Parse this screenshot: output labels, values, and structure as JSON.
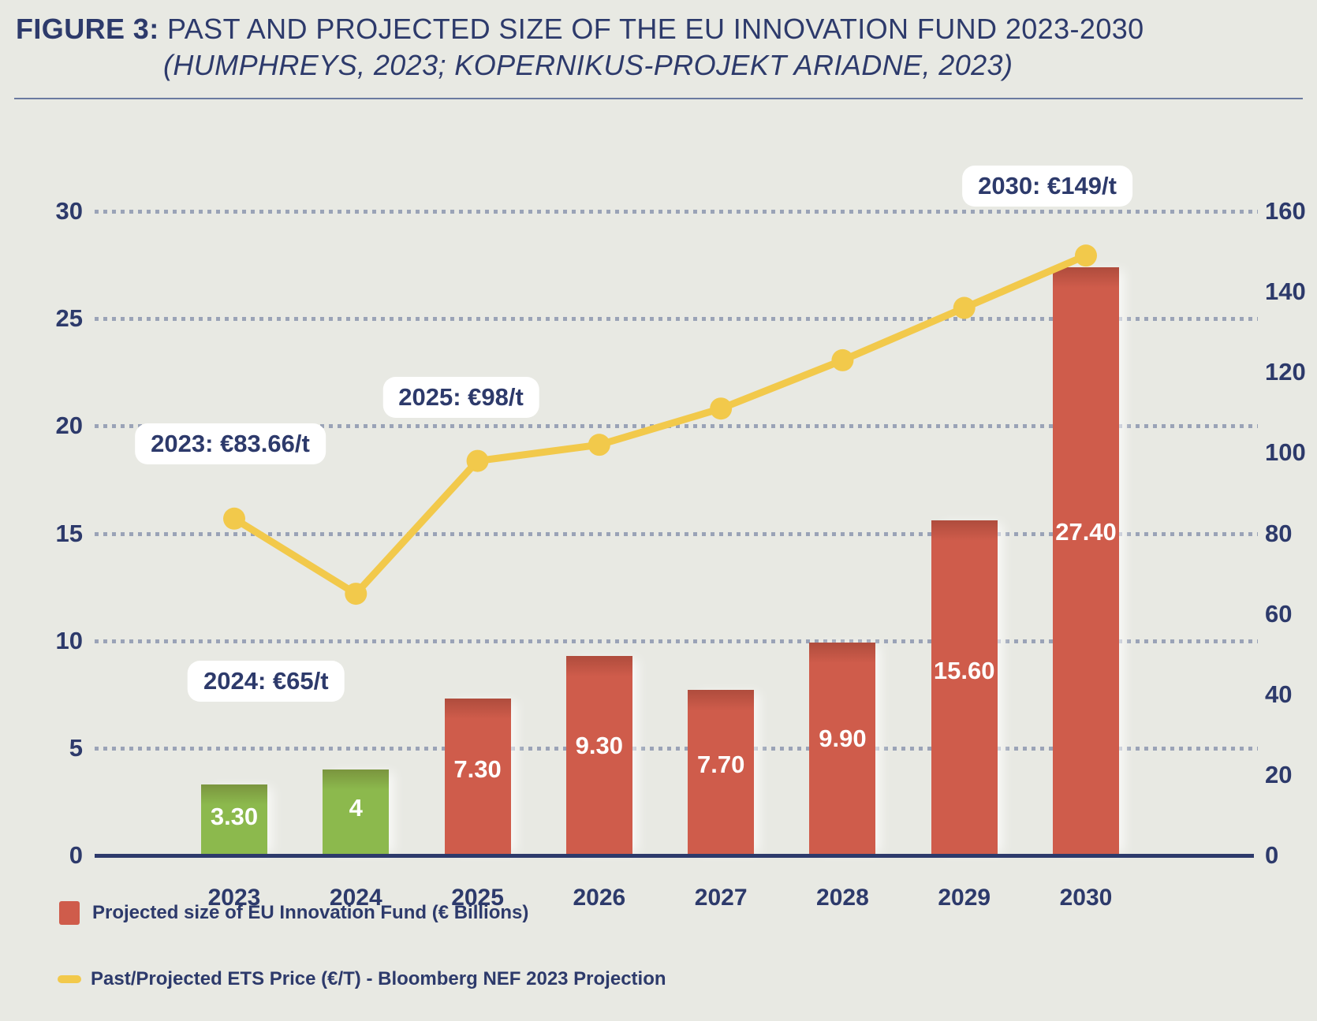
{
  "header": {
    "figure_label": "FIGURE 3:",
    "title_rest": "PAST AND PROJECTED SIZE OF THE EU INNOVATION FUND 2023-2030",
    "subtitle": "(HUMPHREYS, 2023; KOPERNIKUS-PROJEKT ARIADNE, 2023)"
  },
  "legend": {
    "bars_label": "Projected size of EU Innovation Fund (€ Billions)",
    "line_label": "Past/Projected ETS Price (€/T) - Bloomberg NEF 2023 Projection"
  },
  "colors": {
    "background": "#e8e9e3",
    "navy": "#2d3a6b",
    "bar_red": "#cf5c4b",
    "bar_green": "#8cb94d",
    "line_yellow": "#f2c94b",
    "grid_dot": "#9aa3b7",
    "annotation_bg": "#ffffff",
    "bar_value_text": "#ffffff"
  },
  "chart_data": {
    "type": "bar+line combo",
    "categories": [
      "2023",
      "2024",
      "2025",
      "2026",
      "2027",
      "2028",
      "2029",
      "2030"
    ],
    "series": [
      {
        "name": "Projected size of EU Innovation Fund (€ Billions)",
        "type": "bar",
        "axis": "left",
        "values": [
          3.3,
          4,
          7.3,
          9.3,
          7.7,
          9.9,
          15.6,
          27.4
        ],
        "value_labels": [
          "3.30",
          "4",
          "7.30",
          "9.30",
          "7.70",
          "9.90",
          "15.60",
          "27.40"
        ],
        "point_colors": [
          "#8cb94d",
          "#8cb94d",
          "#cf5c4b",
          "#cf5c4b",
          "#cf5c4b",
          "#cf5c4b",
          "#cf5c4b",
          "#cf5c4b"
        ]
      },
      {
        "name": "Past/Projected ETS Price (€/T) - Bloomberg NEF 2023 Projection",
        "type": "line",
        "axis": "right",
        "values": [
          83.66,
          65,
          98,
          102,
          111,
          123,
          136,
          149
        ],
        "color": "#f2c94b"
      }
    ],
    "annotations": [
      {
        "year": "2023",
        "text": "2023: €83.66/t"
      },
      {
        "year": "2024",
        "text": "2024: €65/t"
      },
      {
        "year": "2025",
        "text": "2025: €98/t"
      },
      {
        "year": "2030",
        "text": "2030: €149/t"
      }
    ],
    "left_axis": {
      "ticks": [
        0,
        5,
        10,
        15,
        20,
        25,
        30
      ],
      "min": 0,
      "max": 30
    },
    "right_axis": {
      "ticks": [
        0,
        20,
        40,
        60,
        80,
        100,
        120,
        140,
        160
      ],
      "min": 0,
      "max": 160
    },
    "grid": {
      "horizontal": true,
      "style": "dotted",
      "at_left_ticks": true
    },
    "legend_position": "bottom-left"
  }
}
